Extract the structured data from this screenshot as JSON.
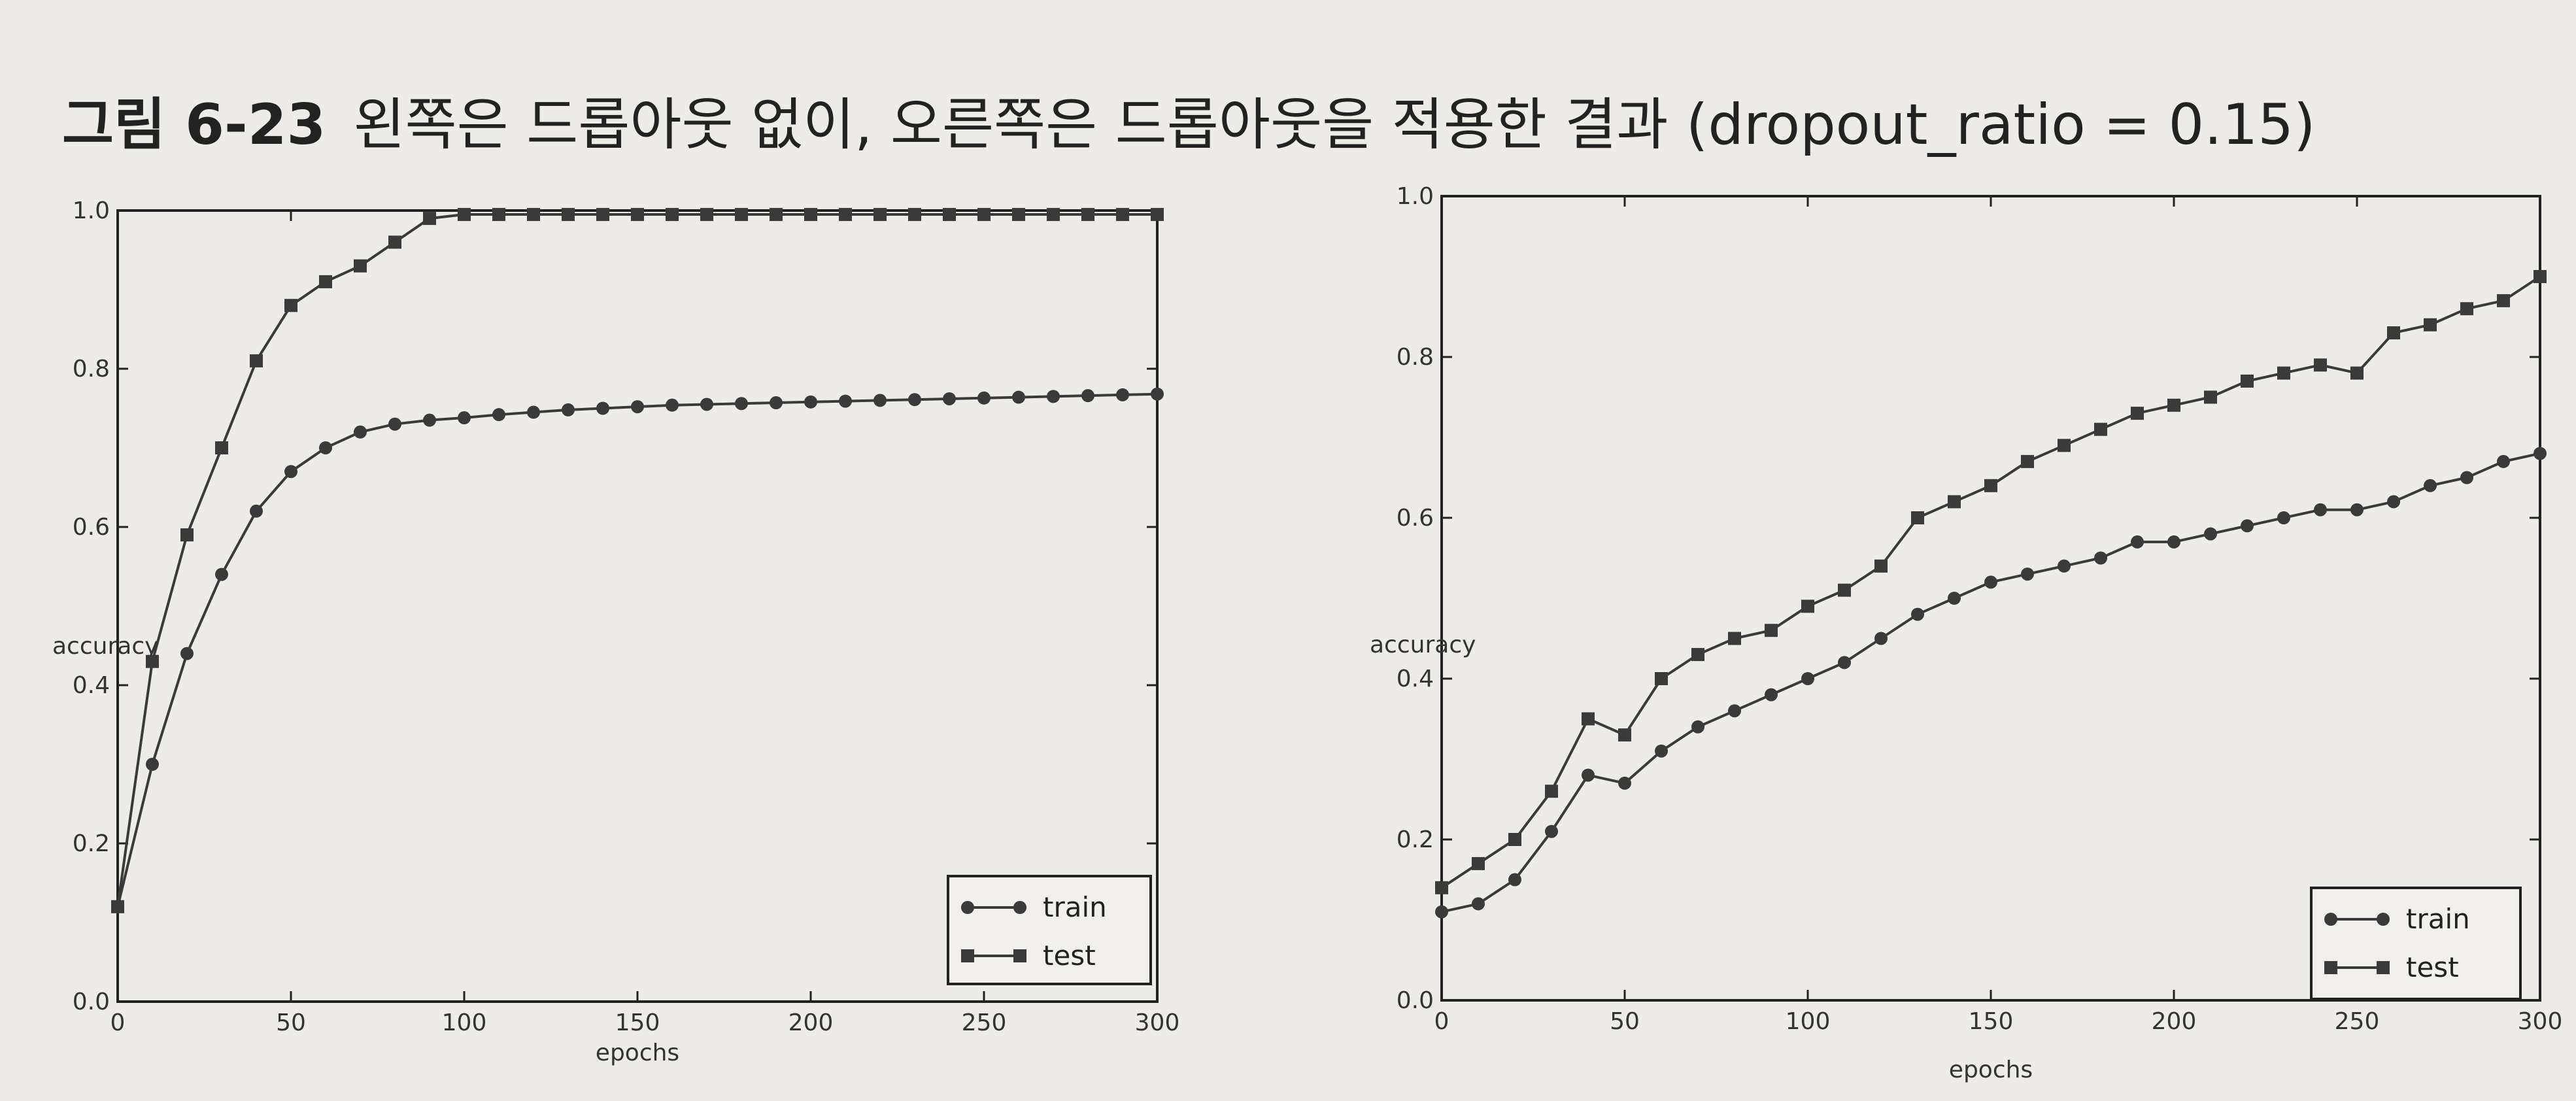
{
  "caption": {
    "label": "그림 6-23",
    "text": "왼쪽은 드롭아웃 없이, 오른쪽은 드롭아웃을 적용한 결과 (dropout_ratio = 0.15)"
  },
  "colors": {
    "line": "#3a3a3a",
    "axis": "#222222"
  },
  "chart_data": [
    {
      "type": "line",
      "title": "",
      "xlabel": "epochs",
      "ylabel": "accuracy",
      "xlim": [
        0,
        300
      ],
      "ylim": [
        0,
        1.0
      ],
      "xticks": [
        "0",
        "50",
        "100",
        "150",
        "200",
        "250",
        "300"
      ],
      "yticks": [
        "0.0",
        "0.2",
        "0.4",
        "0.6",
        "0.8",
        "1.0"
      ],
      "grid": false,
      "legend_position": "bottom-right",
      "x": [
        0,
        10,
        20,
        30,
        40,
        50,
        60,
        70,
        80,
        90,
        100,
        110,
        120,
        130,
        140,
        150,
        160,
        170,
        180,
        190,
        200,
        210,
        220,
        230,
        240,
        250,
        260,
        270,
        280,
        290,
        300
      ],
      "series": [
        {
          "name": "train",
          "marker": "circle",
          "values": [
            0.12,
            0.3,
            0.44,
            0.54,
            0.62,
            0.67,
            0.7,
            0.72,
            0.73,
            0.735,
            0.738,
            0.742,
            0.745,
            0.748,
            0.75,
            0.752,
            0.754,
            0.755,
            0.756,
            0.757,
            0.758,
            0.759,
            0.76,
            0.761,
            0.762,
            0.763,
            0.764,
            0.765,
            0.766,
            0.767,
            0.768
          ]
        },
        {
          "name": "test",
          "marker": "square",
          "values": [
            0.12,
            0.43,
            0.59,
            0.7,
            0.81,
            0.88,
            0.91,
            0.93,
            0.96,
            0.99,
            0.995,
            0.995,
            0.995,
            0.995,
            0.995,
            0.995,
            0.995,
            0.995,
            0.995,
            0.995,
            0.995,
            0.995,
            0.995,
            0.995,
            0.995,
            0.995,
            0.995,
            0.995,
            0.995,
            0.995,
            0.995
          ]
        }
      ]
    },
    {
      "type": "line",
      "title": "",
      "xlabel": "epochs",
      "ylabel": "accuracy",
      "xlim": [
        0,
        300
      ],
      "ylim": [
        0,
        1.0
      ],
      "xticks": [
        "0",
        "50",
        "100",
        "150",
        "200",
        "250",
        "300"
      ],
      "yticks": [
        "0.0",
        "0.2",
        "0.4",
        "0.6",
        "0.8",
        "1.0"
      ],
      "grid": false,
      "legend_position": "bottom-right",
      "x": [
        0,
        10,
        20,
        30,
        40,
        50,
        60,
        70,
        80,
        90,
        100,
        110,
        120,
        130,
        140,
        150,
        160,
        170,
        180,
        190,
        200,
        210,
        220,
        230,
        240,
        250,
        260,
        270,
        280,
        290,
        300
      ],
      "series": [
        {
          "name": "train",
          "marker": "circle",
          "values": [
            0.11,
            0.12,
            0.15,
            0.21,
            0.28,
            0.27,
            0.31,
            0.34,
            0.36,
            0.38,
            0.4,
            0.42,
            0.45,
            0.48,
            0.5,
            0.52,
            0.53,
            0.54,
            0.55,
            0.57,
            0.57,
            0.58,
            0.59,
            0.6,
            0.61,
            0.61,
            0.62,
            0.64,
            0.65,
            0.67,
            0.68
          ]
        },
        {
          "name": "test",
          "marker": "square",
          "values": [
            0.14,
            0.17,
            0.2,
            0.26,
            0.35,
            0.33,
            0.4,
            0.43,
            0.45,
            0.46,
            0.49,
            0.51,
            0.54,
            0.6,
            0.62,
            0.64,
            0.67,
            0.69,
            0.71,
            0.73,
            0.74,
            0.75,
            0.77,
            0.78,
            0.79,
            0.78,
            0.83,
            0.84,
            0.86,
            0.87,
            0.9
          ]
        }
      ]
    }
  ]
}
